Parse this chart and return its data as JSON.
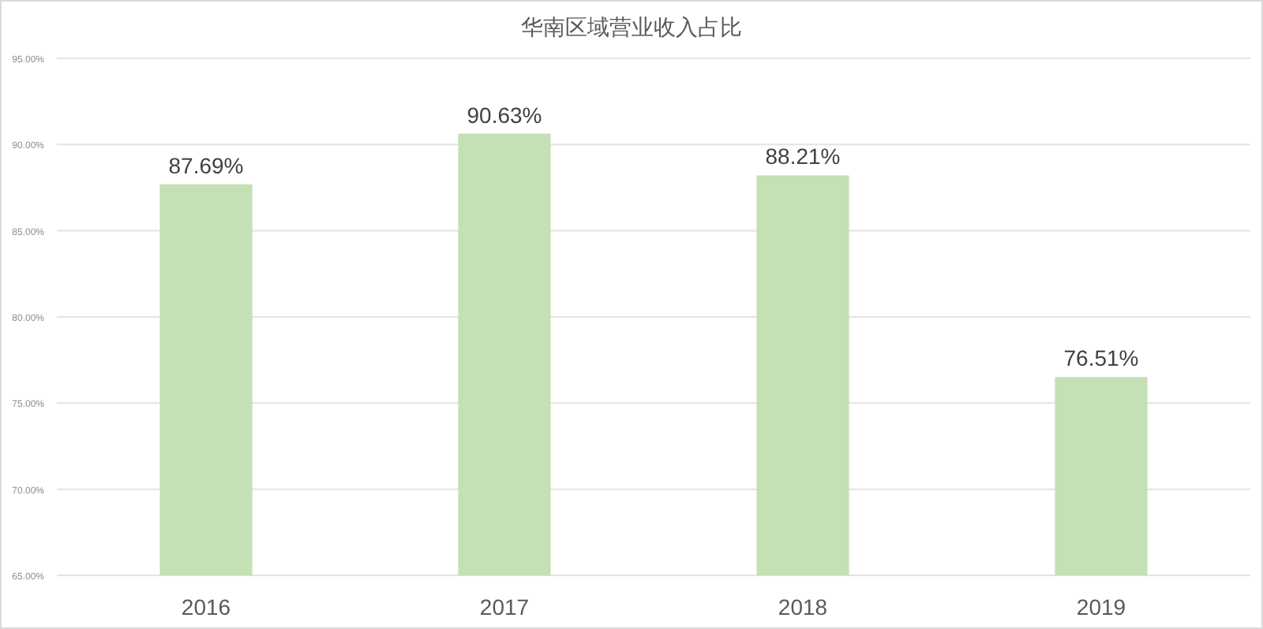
{
  "chart_data": {
    "type": "bar",
    "title": "华南区域营业收入占比",
    "categories": [
      "2016",
      "2017",
      "2018",
      "2019"
    ],
    "values": [
      87.69,
      90.63,
      88.21,
      76.51
    ],
    "value_labels": [
      "87.69%",
      "90.63%",
      "88.21%",
      "76.51%"
    ],
    "color": "#c5e0b4",
    "ylim": [
      65,
      95
    ],
    "yticks": [
      {
        "value": 65,
        "label": "65.00%"
      },
      {
        "value": 70,
        "label": "70.00%"
      },
      {
        "value": 75,
        "label": "75.00%"
      },
      {
        "value": 80,
        "label": "80.00%"
      },
      {
        "value": 85,
        "label": "85.00%"
      },
      {
        "value": 90,
        "label": "90.00%"
      },
      {
        "value": 95,
        "label": "95.00%"
      }
    ],
    "grid": "y"
  }
}
